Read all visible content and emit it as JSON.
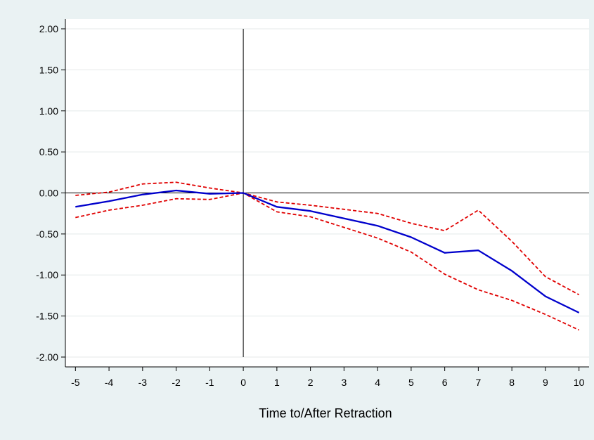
{
  "chart_data": {
    "type": "line",
    "title": "",
    "xlabel": "Time to/After Retraction",
    "ylabel": "",
    "x": [
      -5,
      -4,
      -3,
      -2,
      -1,
      0,
      1,
      2,
      3,
      4,
      5,
      6,
      7,
      8,
      9,
      10
    ],
    "xlim": [
      -5.3,
      10.3
    ],
    "ylim": [
      -2.12,
      2.12
    ],
    "yticks": [
      -2,
      -1.5,
      -1,
      -0.5,
      0,
      0.5,
      1,
      1.5,
      2
    ],
    "ytick_labels": [
      "-2.00",
      "-1.50",
      "-1.00",
      "-0.50",
      "0.00",
      "0.50",
      "1.00",
      "1.50",
      "2.00"
    ],
    "xticks": [
      -5,
      -4,
      -3,
      -2,
      -1,
      0,
      1,
      2,
      3,
      4,
      5,
      6,
      7,
      8,
      9,
      10
    ],
    "xtick_labels": [
      "-5",
      "-4",
      "-3",
      "-2",
      "-1",
      "0",
      "1",
      "2",
      "3",
      "4",
      "5",
      "6",
      "7",
      "8",
      "9",
      "10"
    ],
    "grid": true,
    "reference_lines": {
      "vertical_x": 0,
      "horizontal_y": 0
    },
    "series": [
      {
        "role": "estimate",
        "style": "solid",
        "color": "#0000cc",
        "values": [
          -0.17,
          -0.1,
          -0.02,
          0.03,
          -0.01,
          0.0,
          -0.17,
          -0.22,
          -0.31,
          -0.4,
          -0.54,
          -0.73,
          -0.7,
          -0.95,
          -1.26,
          -1.46
        ]
      },
      {
        "role": "upper-bound",
        "style": "dashed",
        "color": "#e00000",
        "values": [
          -0.03,
          0.01,
          0.11,
          0.13,
          0.06,
          0.0,
          -0.11,
          -0.15,
          -0.2,
          -0.25,
          -0.37,
          -0.46,
          -0.21,
          -0.59,
          -1.02,
          -1.24
        ]
      },
      {
        "role": "lower-bound",
        "style": "dashed",
        "color": "#e00000",
        "values": [
          -0.3,
          -0.21,
          -0.15,
          -0.07,
          -0.08,
          0.0,
          -0.23,
          -0.29,
          -0.42,
          -0.55,
          -0.72,
          -0.99,
          -1.18,
          -1.31,
          -1.48,
          -1.67
        ]
      }
    ]
  }
}
